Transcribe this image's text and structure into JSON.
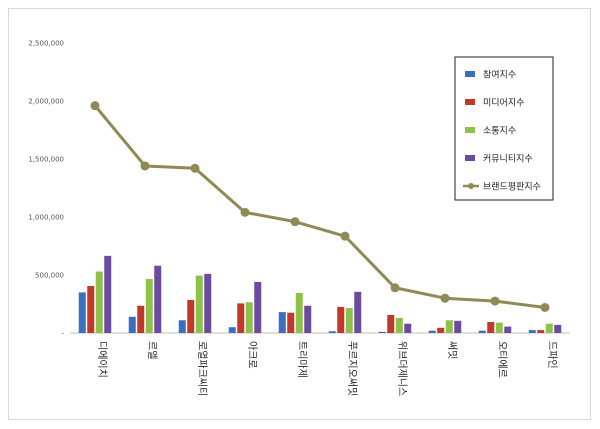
{
  "chart_data": {
    "type": "bar",
    "categories": [
      "디에이치",
      "르엘",
      "로열파크씨티",
      "아크로",
      "트리마제",
      "푸르지오써밋",
      "위브더제니스",
      "써밋",
      "오티에르",
      "드파인"
    ],
    "series": [
      {
        "name": "참여지수",
        "kind": "bar",
        "color": "#3a6ebf",
        "values": [
          350000,
          140000,
          110000,
          50000,
          180000,
          15000,
          10000,
          20000,
          20000,
          25000
        ]
      },
      {
        "name": "미디어지수",
        "kind": "bar",
        "color": "#c0392b",
        "values": [
          405000,
          235000,
          285000,
          255000,
          175000,
          225000,
          155000,
          45000,
          95000,
          25000
        ]
      },
      {
        "name": "소통지수",
        "kind": "bar",
        "color": "#8dc14a",
        "values": [
          530000,
          465000,
          495000,
          265000,
          345000,
          215000,
          130000,
          110000,
          90000,
          80000
        ]
      },
      {
        "name": "커뮤니티지수",
        "kind": "bar",
        "color": "#6b4aa0",
        "values": [
          665000,
          580000,
          510000,
          440000,
          235000,
          355000,
          80000,
          105000,
          55000,
          70000
        ]
      },
      {
        "name": "브랜드평판지수",
        "kind": "line",
        "color": "#8f8a55",
        "values": [
          1960000,
          1440000,
          1420000,
          1040000,
          960000,
          835000,
          390000,
          300000,
          275000,
          220000
        ]
      }
    ],
    "ylim": [
      0,
      2500000
    ],
    "yticks": [
      0,
      500000,
      1000000,
      1500000,
      2000000,
      2500000
    ],
    "ytick_labels": [
      "-",
      "500,000",
      "1,000,000",
      "1,500,000",
      "2,000,000",
      "2,500,000"
    ],
    "grid": false,
    "legend_position": "top-right"
  }
}
